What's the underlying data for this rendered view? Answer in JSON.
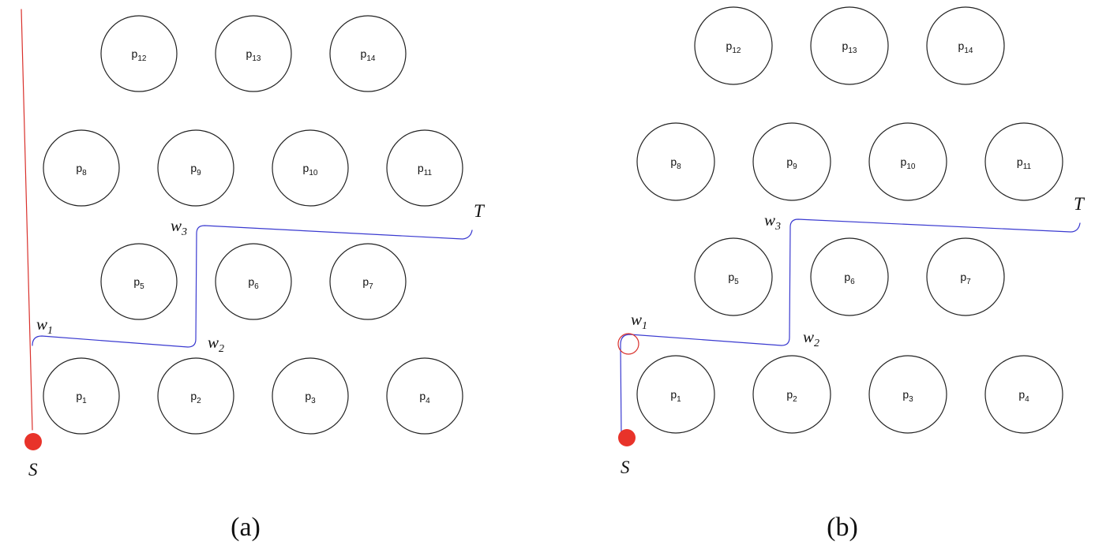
{
  "colors": {
    "obstacle": "#222222",
    "path_a_red": "#d9302b",
    "path_blue": "#3a3ad0",
    "start_marker": "#e8332a",
    "text": "#111111"
  },
  "panels": [
    {
      "id": "a",
      "caption": "(a)",
      "start_label": "S",
      "target_label": "T",
      "waypoints": [
        {
          "letter": "w",
          "sub": "1"
        },
        {
          "letter": "w",
          "sub": "2"
        },
        {
          "letter": "w",
          "sub": "3"
        }
      ],
      "obstacles": [
        {
          "base": "p",
          "sub": "1"
        },
        {
          "base": "p",
          "sub": "2"
        },
        {
          "base": "p",
          "sub": "3"
        },
        {
          "base": "p",
          "sub": "4"
        },
        {
          "base": "p",
          "sub": "5"
        },
        {
          "base": "p",
          "sub": "6"
        },
        {
          "base": "p",
          "sub": "7"
        },
        {
          "base": "p",
          "sub": "8"
        },
        {
          "base": "p",
          "sub": "9"
        },
        {
          "base": "p",
          "sub": "10"
        },
        {
          "base": "p",
          "sub": "11"
        },
        {
          "base": "p",
          "sub": "12"
        },
        {
          "base": "p",
          "sub": "13"
        },
        {
          "base": "p",
          "sub": "14"
        }
      ]
    },
    {
      "id": "b",
      "caption": "(b)",
      "start_label": "S",
      "target_label": "T",
      "waypoints": [
        {
          "letter": "w",
          "sub": "1"
        },
        {
          "letter": "w",
          "sub": "2"
        },
        {
          "letter": "w",
          "sub": "3"
        }
      ],
      "obstacles": [
        {
          "base": "p",
          "sub": "1"
        },
        {
          "base": "p",
          "sub": "2"
        },
        {
          "base": "p",
          "sub": "3"
        },
        {
          "base": "p",
          "sub": "4"
        },
        {
          "base": "p",
          "sub": "5"
        },
        {
          "base": "p",
          "sub": "6"
        },
        {
          "base": "p",
          "sub": "7"
        },
        {
          "base": "p",
          "sub": "8"
        },
        {
          "base": "p",
          "sub": "9"
        },
        {
          "base": "p",
          "sub": "10"
        },
        {
          "base": "p",
          "sub": "11"
        },
        {
          "base": "p",
          "sub": "12"
        },
        {
          "base": "p",
          "sub": "13"
        },
        {
          "base": "p",
          "sub": "14"
        }
      ]
    }
  ]
}
